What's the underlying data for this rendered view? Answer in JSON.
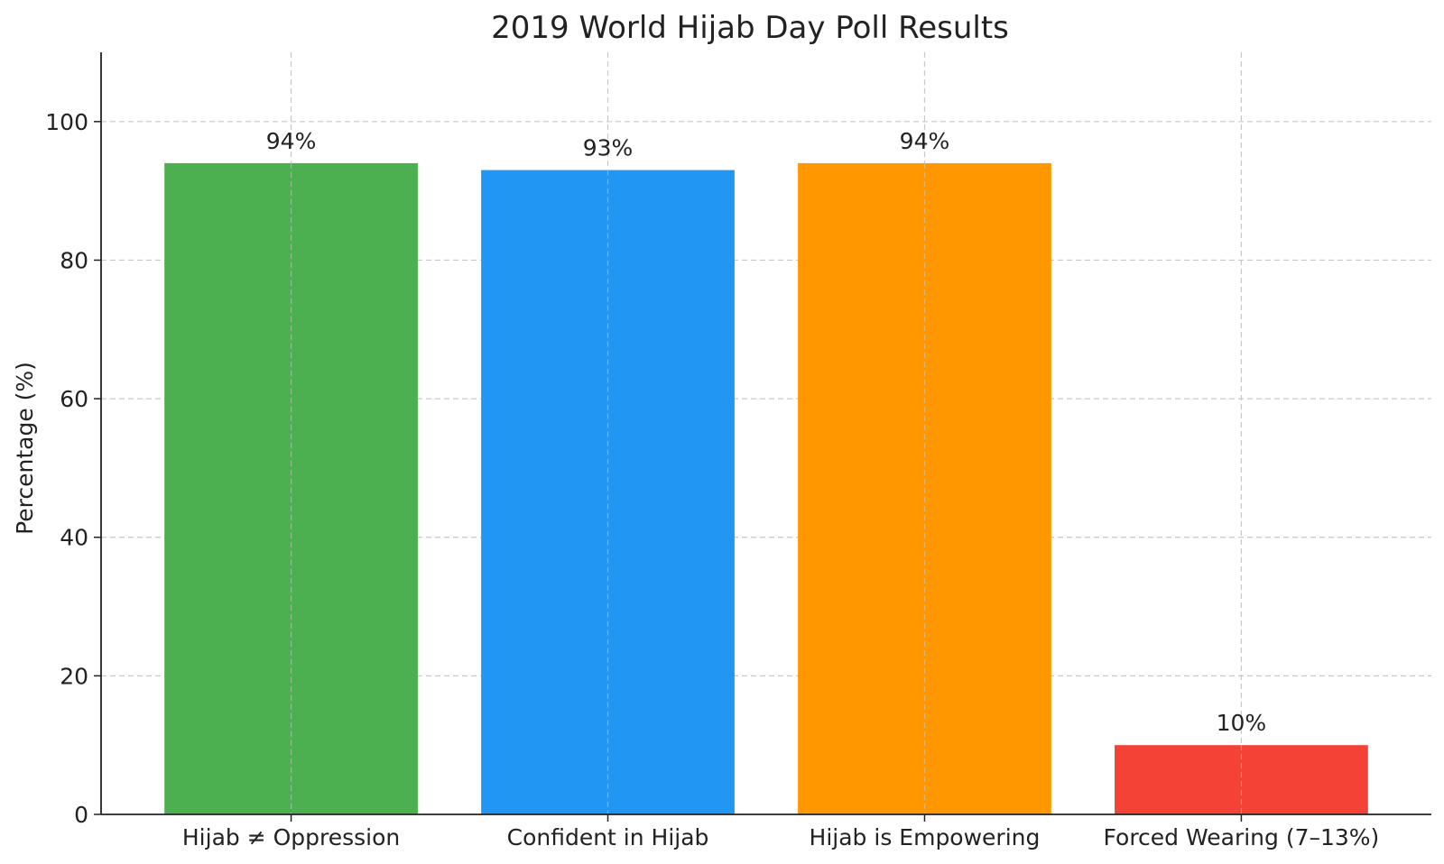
{
  "chart_data": {
    "type": "bar",
    "title": "2019 World Hijab Day Poll Results",
    "xlabel": "",
    "ylabel": "Percentage (%)",
    "ylim": [
      0,
      110
    ],
    "yticks": [
      0,
      20,
      40,
      60,
      80,
      100
    ],
    "grid": true,
    "legend": "none",
    "categories": [
      "Hijab ≠ Oppression",
      "Confident in Hijab",
      "Hijab is Empowering",
      "Forced Wearing (7–13%)"
    ],
    "values": [
      94,
      93,
      94,
      10
    ],
    "data_labels": [
      "94%",
      "93%",
      "94%",
      "10%"
    ],
    "colors": [
      "#4caf50",
      "#2196f3",
      "#ff9800",
      "#f44336"
    ]
  }
}
